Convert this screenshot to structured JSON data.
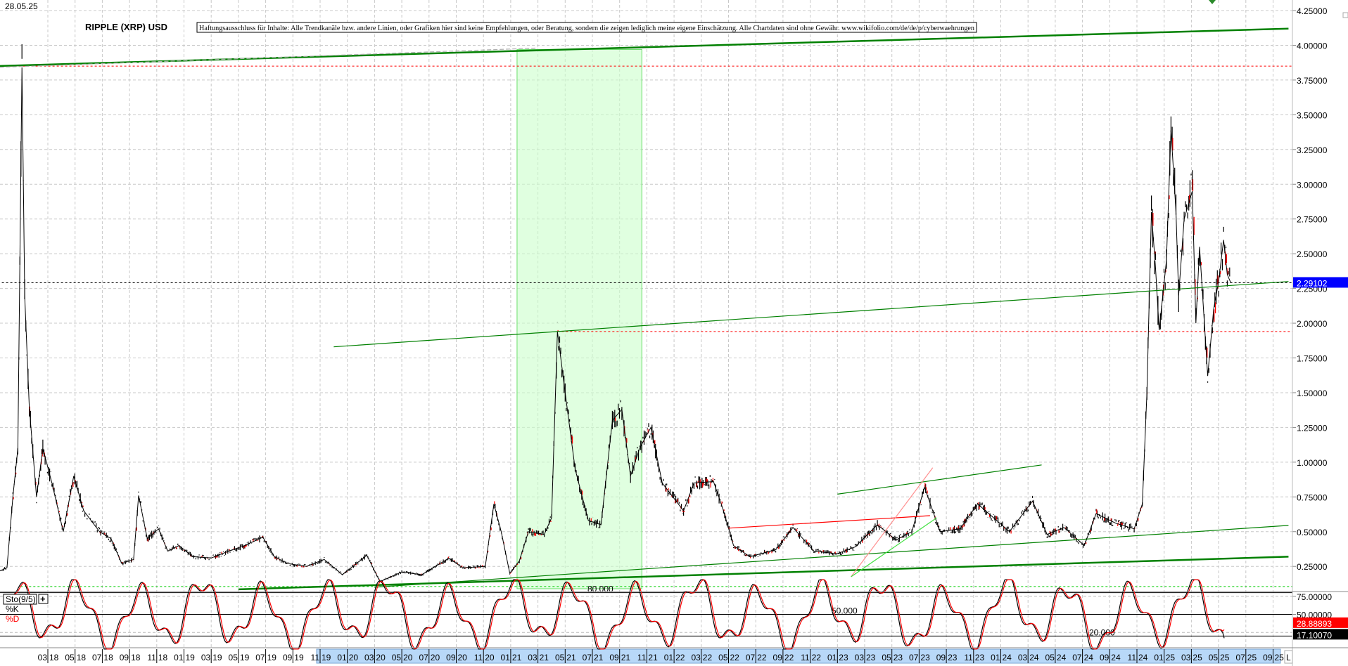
{
  "header": {
    "date": "28.05.25",
    "title": "RIPPLE (XRP) USD",
    "disclaimer": "Haftungsausschluss für Inhalte: Alle Trendkanäle bzw. andere Linien, oder Grafiken hier sind keine Empfehlungen, oder Beratung, sondern die zeigen lediglich meine eigene Einschätzung. Alle Chartdaten sind ohne Gewähr.  www.wikifolio.com/de/de/p/cyberwaehrungen"
  },
  "colors": {
    "price": "#000000",
    "price_down": "#ff0000",
    "trend": "#008000",
    "zone": "#ccffcc",
    "last_price_bg": "#0000ff",
    "axis_highlight": "#b8d8f8"
  },
  "chart_data": [
    {
      "type": "line",
      "title": "RIPPLE (XRP) USD",
      "y_axis": {
        "ylim": [
          0,
          4.35
        ],
        "ticks": [
          "4.25000",
          "4.00000",
          "3.75000",
          "3.50000",
          "3.25000",
          "3.00000",
          "2.75000",
          "2.50000",
          "2.25000",
          "2.00000",
          "1.75000",
          "1.50000",
          "1.25000",
          "1.00000",
          "0.75000",
          "0.50000",
          "0.25000"
        ],
        "position": "right",
        "grid": true
      },
      "x_axis": {
        "ticks": [
          "03 18",
          "05 18",
          "07 18",
          "09 18",
          "11 18",
          "01 19",
          "03 19",
          "05 19",
          "07 19",
          "09 19",
          "11 19",
          "01 20",
          "03 20",
          "05 20",
          "07 20",
          "09 20",
          "11 20",
          "01 21",
          "03 21",
          "05 21",
          "07 21",
          "09 21",
          "11 21",
          "01 22",
          "03 22",
          "05 22",
          "07 22",
          "09 22",
          "11 22",
          "01 23",
          "03 23",
          "05 23",
          "07 23",
          "09 23",
          "11 23",
          "01 24",
          "03 24",
          "05 24",
          "07 24",
          "09 24",
          "11 24",
          "01 25",
          "03 25",
          "05 25",
          "07 25",
          "09 25"
        ],
        "grid": true
      },
      "last_price": "2.29102",
      "series": [
        {
          "points": [
            [
              "2017-11-10",
              0.21
            ],
            [
              "2017-12-01",
              0.24
            ],
            [
              "2017-12-14",
              0.75
            ],
            [
              "2017-12-25",
              1.1
            ],
            [
              "2018-01-04",
              3.84
            ],
            [
              "2018-01-10",
              2.2
            ],
            [
              "2018-01-20",
              1.4
            ],
            [
              "2018-02-06",
              0.75
            ],
            [
              "2018-02-20",
              1.1
            ],
            [
              "2018-03-10",
              0.85
            ],
            [
              "2018-04-05",
              0.5
            ],
            [
              "2018-04-28",
              0.9
            ],
            [
              "2018-05-20",
              0.65
            ],
            [
              "2018-06-25",
              0.5
            ],
            [
              "2018-07-20",
              0.45
            ],
            [
              "2018-08-14",
              0.27
            ],
            [
              "2018-09-10",
              0.3
            ],
            [
              "2018-09-21",
              0.76
            ],
            [
              "2018-10-10",
              0.45
            ],
            [
              "2018-11-05",
              0.52
            ],
            [
              "2018-11-25",
              0.36
            ],
            [
              "2018-12-20",
              0.4
            ],
            [
              "2019-01-20",
              0.32
            ],
            [
              "2019-03-01",
              0.31
            ],
            [
              "2019-04-10",
              0.36
            ],
            [
              "2019-05-15",
              0.4
            ],
            [
              "2019-06-25",
              0.46
            ],
            [
              "2019-07-20",
              0.32
            ],
            [
              "2019-08-20",
              0.27
            ],
            [
              "2019-10-01",
              0.25
            ],
            [
              "2019-11-10",
              0.3
            ],
            [
              "2019-12-20",
              0.19
            ],
            [
              "2020-02-14",
              0.33
            ],
            [
              "2020-03-13",
              0.14
            ],
            [
              "2020-05-01",
              0.21
            ],
            [
              "2020-06-15",
              0.19
            ],
            [
              "2020-08-15",
              0.31
            ],
            [
              "2020-09-15",
              0.24
            ],
            [
              "2020-11-05",
              0.25
            ],
            [
              "2020-11-24",
              0.7
            ],
            [
              "2020-12-10",
              0.5
            ],
            [
              "2020-12-29",
              0.2
            ],
            [
              "2021-01-20",
              0.29
            ],
            [
              "2021-02-10",
              0.5
            ],
            [
              "2021-03-15",
              0.48
            ],
            [
              "2021-04-01",
              0.6
            ],
            [
              "2021-04-14",
              1.94
            ],
            [
              "2021-05-01",
              1.5
            ],
            [
              "2021-05-23",
              0.95
            ],
            [
              "2021-06-22",
              0.58
            ],
            [
              "2021-07-20",
              0.55
            ],
            [
              "2021-08-15",
              1.3
            ],
            [
              "2021-09-06",
              1.38
            ],
            [
              "2021-09-25",
              0.9
            ],
            [
              "2021-10-15",
              1.1
            ],
            [
              "2021-11-10",
              1.25
            ],
            [
              "2021-12-05",
              0.85
            ],
            [
              "2022-01-22",
              0.65
            ],
            [
              "2022-02-15",
              0.85
            ],
            [
              "2022-03-28",
              0.86
            ],
            [
              "2022-04-20",
              0.65
            ],
            [
              "2022-05-12",
              0.4
            ],
            [
              "2022-06-18",
              0.32
            ],
            [
              "2022-08-15",
              0.37
            ],
            [
              "2022-09-23",
              0.53
            ],
            [
              "2022-11-09",
              0.36
            ],
            [
              "2022-12-30",
              0.34
            ],
            [
              "2023-02-10",
              0.39
            ],
            [
              "2023-03-29",
              0.55
            ],
            [
              "2023-05-10",
              0.44
            ],
            [
              "2023-06-15",
              0.5
            ],
            [
              "2023-07-13",
              0.82
            ],
            [
              "2023-08-17",
              0.5
            ],
            [
              "2023-10-01",
              0.52
            ],
            [
              "2023-11-10",
              0.7
            ],
            [
              "2024-01-20",
              0.5
            ],
            [
              "2024-03-11",
              0.72
            ],
            [
              "2024-04-13",
              0.48
            ],
            [
              "2024-05-20",
              0.53
            ],
            [
              "2024-07-05",
              0.4
            ],
            [
              "2024-07-31",
              0.63
            ],
            [
              "2024-09-15",
              0.56
            ],
            [
              "2024-10-25",
              0.52
            ],
            [
              "2024-11-13",
              0.7
            ],
            [
              "2024-11-23",
              1.5
            ],
            [
              "2024-12-03",
              2.8
            ],
            [
              "2024-12-12",
              2.4
            ],
            [
              "2024-12-20",
              1.95
            ],
            [
              "2025-01-06",
              2.45
            ],
            [
              "2025-01-16",
              3.39
            ],
            [
              "2025-01-27",
              2.8
            ],
            [
              "2025-02-03",
              2.2
            ],
            [
              "2025-02-15",
              2.75
            ],
            [
              "2025-03-03",
              2.95
            ],
            [
              "2025-03-11",
              2.0
            ],
            [
              "2025-03-19",
              2.55
            ],
            [
              "2025-04-07",
              1.62
            ],
            [
              "2025-04-20",
              2.1
            ],
            [
              "2025-05-01",
              2.3
            ],
            [
              "2025-05-12",
              2.6
            ],
            [
              "2025-05-20",
              2.35
            ],
            [
              "2025-05-28",
              2.29
            ]
          ]
        }
      ],
      "annotations": {
        "trend_lines": [
          {
            "color": "#008000",
            "width": "thick",
            "from": [
              "2017-11-01",
              3.85
            ],
            "to": [
              "2025-10-05",
              4.12
            ]
          },
          {
            "color": "#b0b0b0",
            "width": "thin",
            "dashed": true,
            "from": [
              "2017-11-01",
              3.84
            ],
            "to": [
              "2021-03-01",
              3.98
            ]
          },
          {
            "color": "#008000",
            "width": "thin",
            "from": [
              "2019-12-01",
              1.83
            ],
            "to": [
              "2025-10-05",
              2.3
            ]
          },
          {
            "color": "#008000",
            "width": "thick",
            "from": [
              "2019-05-01",
              0.085
            ],
            "to": [
              "2025-10-05",
              0.32
            ]
          },
          {
            "color": "#008000",
            "width": "thin",
            "from": [
              "2020-03-01",
              0.1
            ],
            "to": [
              "2025-10-05",
              0.545
            ]
          },
          {
            "color": "#008000",
            "width": "thin",
            "from": [
              "2023-01-01",
              0.77
            ],
            "to": [
              "2024-04-01",
              0.98
            ]
          },
          {
            "color": "#ff0000",
            "width": "thin",
            "from": [
              "2022-05-01",
              0.525
            ],
            "to": [
              "2023-07-25",
              0.615
            ]
          },
          {
            "color": "#ff9090",
            "width": "thin",
            "from": [
              "2023-02-01",
              0.175
            ],
            "to": [
              "2023-08-01",
              0.96
            ]
          },
          {
            "color": "#40e040",
            "width": "thin",
            "from": [
              "2023-02-01",
              0.175
            ],
            "to": [
              "2023-08-10",
              0.6
            ]
          }
        ],
        "horizontal_lines": [
          {
            "value": 3.85,
            "color": "#ff0000",
            "style": "dotted",
            "from": "2017-11-01"
          },
          {
            "value": 1.94,
            "color": "#ff0000",
            "style": "dotted",
            "from": "2021-04-14"
          },
          {
            "value": 2.291,
            "color": "#000000",
            "style": "dotted",
            "from": "2017-11-01"
          },
          {
            "value": 0.105,
            "color": "#00cc00",
            "style": "dotted",
            "from": "2018-01-01"
          }
        ],
        "zone": {
          "from": "2021-01-15",
          "to": "2021-10-20",
          "top": 3.97,
          "color": "#ccffcc"
        }
      }
    },
    {
      "type": "line",
      "title": "Sto(9/5)",
      "series": [
        {
          "name": "%K",
          "color": "#000000",
          "last": "17.10070"
        },
        {
          "name": "%D",
          "color": "#ff0000",
          "last": "28.88893"
        }
      ],
      "levels": [
        "80.000",
        "50.000",
        "20.000"
      ],
      "y_axis": {
        "ticks": [
          "75.00000",
          "50.00000"
        ],
        "ylim": [
          0,
          100
        ]
      }
    }
  ],
  "indicator": {
    "label": "Sto(9/5)",
    "add": "+",
    "k_label": "%K",
    "d_label": "%D"
  },
  "corner": {
    "minimize": "−",
    "axis_mode": "L"
  }
}
